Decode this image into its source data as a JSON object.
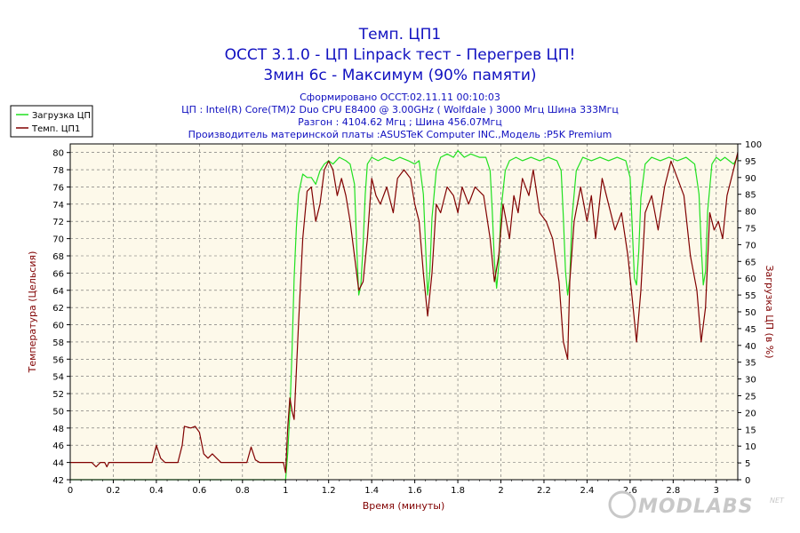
{
  "chart_data": {
    "type": "line",
    "titles": [
      "Темп. ЦП1",
      "OCCT 3.1.0 - ЦП Linpack тест - Перегрев ЦП!",
      "3мин 6с - Максимум (90% памяти)"
    ],
    "subtitles": [
      "Сформировано OCCT:02.11.11 00:10:03",
      "ЦП : Intel(R) Core(TM)2 Duo CPU E8400 @ 3.00GHz ( Wolfdale ) 3000 Мгц Шина 333Мгц",
      "Разгон : 4104.62 Мгц ; Шина 456.07Мгц",
      "Производитель материнской платы :ASUSTeK Computer INC.,Модель :P5K Premium"
    ],
    "xlabel": "Время (минуты)",
    "ylabel_left": "Температура (Цельсия)",
    "ylabel_right": "Загрузка ЦП (в %)",
    "xlim": [
      0,
      3.1
    ],
    "ylim_left": [
      42,
      81
    ],
    "ylim_right": [
      0,
      100
    ],
    "x_ticks": [
      "0",
      "0.2",
      "0.4",
      "0.6",
      "0.8",
      "1",
      "1.2",
      "1.4",
      "1.6",
      "1.8",
      "2",
      "2.2",
      "2.4",
      "2.6",
      "2.8",
      "3"
    ],
    "y_left_ticks": [
      "42",
      "44",
      "46",
      "48",
      "50",
      "52",
      "54",
      "56",
      "58",
      "60",
      "62",
      "64",
      "66",
      "68",
      "70",
      "72",
      "74",
      "76",
      "78",
      "80"
    ],
    "y_right_ticks": [
      "0",
      "5",
      "10",
      "15",
      "20",
      "25",
      "30",
      "35",
      "40",
      "45",
      "50",
      "55",
      "60",
      "65",
      "70",
      "75",
      "80",
      "85",
      "90",
      "95",
      "100"
    ],
    "grid": true,
    "legend_position": "top-left",
    "series": [
      {
        "name": "Загрузка ЦП",
        "axis": "right",
        "color": "#20e020",
        "points": [
          [
            0,
            0
          ],
          [
            1.0,
            0
          ],
          [
            1.01,
            8
          ],
          [
            1.02,
            20
          ],
          [
            1.03,
            38
          ],
          [
            1.04,
            60
          ],
          [
            1.05,
            75
          ],
          [
            1.06,
            85
          ],
          [
            1.08,
            91
          ],
          [
            1.1,
            90
          ],
          [
            1.12,
            90
          ],
          [
            1.14,
            88
          ],
          [
            1.16,
            92
          ],
          [
            1.18,
            94
          ],
          [
            1.2,
            95
          ],
          [
            1.22,
            94
          ],
          [
            1.25,
            96
          ],
          [
            1.28,
            95
          ],
          [
            1.3,
            94
          ],
          [
            1.32,
            88
          ],
          [
            1.33,
            70
          ],
          [
            1.34,
            55
          ],
          [
            1.35,
            58
          ],
          [
            1.36,
            70
          ],
          [
            1.37,
            85
          ],
          [
            1.38,
            94
          ],
          [
            1.4,
            96
          ],
          [
            1.43,
            95
          ],
          [
            1.46,
            96
          ],
          [
            1.5,
            95
          ],
          [
            1.53,
            96
          ],
          [
            1.57,
            95
          ],
          [
            1.6,
            94
          ],
          [
            1.62,
            95
          ],
          [
            1.64,
            85
          ],
          [
            1.65,
            70
          ],
          [
            1.66,
            55
          ],
          [
            1.67,
            62
          ],
          [
            1.68,
            78
          ],
          [
            1.7,
            92
          ],
          [
            1.72,
            96
          ],
          [
            1.75,
            97
          ],
          [
            1.78,
            96
          ],
          [
            1.8,
            98
          ],
          [
            1.83,
            96
          ],
          [
            1.86,
            97
          ],
          [
            1.9,
            96
          ],
          [
            1.93,
            96
          ],
          [
            1.95,
            92
          ],
          [
            1.96,
            80
          ],
          [
            1.97,
            65
          ],
          [
            1.98,
            57
          ],
          [
            1.99,
            64
          ],
          [
            2.0,
            80
          ],
          [
            2.02,
            92
          ],
          [
            2.04,
            95
          ],
          [
            2.07,
            96
          ],
          [
            2.1,
            95
          ],
          [
            2.14,
            96
          ],
          [
            2.18,
            95
          ],
          [
            2.22,
            96
          ],
          [
            2.26,
            95
          ],
          [
            2.28,
            92
          ],
          [
            2.29,
            78
          ],
          [
            2.3,
            62
          ],
          [
            2.31,
            55
          ],
          [
            2.32,
            60
          ],
          [
            2.33,
            78
          ],
          [
            2.35,
            92
          ],
          [
            2.38,
            96
          ],
          [
            2.42,
            95
          ],
          [
            2.46,
            96
          ],
          [
            2.5,
            95
          ],
          [
            2.54,
            96
          ],
          [
            2.58,
            95
          ],
          [
            2.6,
            90
          ],
          [
            2.61,
            75
          ],
          [
            2.62,
            60
          ],
          [
            2.63,
            58
          ],
          [
            2.64,
            68
          ],
          [
            2.65,
            84
          ],
          [
            2.67,
            94
          ],
          [
            2.7,
            96
          ],
          [
            2.74,
            95
          ],
          [
            2.78,
            96
          ],
          [
            2.82,
            95
          ],
          [
            2.86,
            96
          ],
          [
            2.9,
            94
          ],
          [
            2.92,
            85
          ],
          [
            2.93,
            70
          ],
          [
            2.94,
            58
          ],
          [
            2.95,
            62
          ],
          [
            2.96,
            80
          ],
          [
            2.98,
            94
          ],
          [
            3.0,
            96
          ],
          [
            3.02,
            95
          ],
          [
            3.04,
            96
          ],
          [
            3.06,
            95
          ],
          [
            3.08,
            94
          ],
          [
            3.1,
            96
          ]
        ]
      },
      {
        "name": "Темп. ЦП1",
        "axis": "left",
        "color": "#800000",
        "points": [
          [
            0,
            44
          ],
          [
            0.1,
            44
          ],
          [
            0.12,
            43.5
          ],
          [
            0.14,
            44
          ],
          [
            0.16,
            44
          ],
          [
            0.17,
            43.5
          ],
          [
            0.18,
            44
          ],
          [
            0.38,
            44
          ],
          [
            0.4,
            46
          ],
          [
            0.42,
            44.5
          ],
          [
            0.44,
            44
          ],
          [
            0.5,
            44
          ],
          [
            0.52,
            46
          ],
          [
            0.53,
            48.2
          ],
          [
            0.56,
            48
          ],
          [
            0.58,
            48.2
          ],
          [
            0.6,
            47.5
          ],
          [
            0.62,
            45
          ],
          [
            0.64,
            44.5
          ],
          [
            0.66,
            45
          ],
          [
            0.68,
            44.5
          ],
          [
            0.7,
            44
          ],
          [
            0.8,
            44
          ],
          [
            0.82,
            44
          ],
          [
            0.84,
            45.8
          ],
          [
            0.86,
            44.3
          ],
          [
            0.88,
            44
          ],
          [
            0.99,
            44
          ],
          [
            1.0,
            42.8
          ],
          [
            1.01,
            48
          ],
          [
            1.02,
            51.5
          ],
          [
            1.03,
            50
          ],
          [
            1.04,
            49
          ],
          [
            1.06,
            60
          ],
          [
            1.08,
            70
          ],
          [
            1.1,
            75.5
          ],
          [
            1.12,
            76
          ],
          [
            1.14,
            72
          ],
          [
            1.16,
            74
          ],
          [
            1.18,
            78
          ],
          [
            1.2,
            79
          ],
          [
            1.22,
            78
          ],
          [
            1.24,
            75
          ],
          [
            1.26,
            77
          ],
          [
            1.28,
            75
          ],
          [
            1.3,
            72
          ],
          [
            1.32,
            68
          ],
          [
            1.34,
            64
          ],
          [
            1.36,
            65
          ],
          [
            1.38,
            70
          ],
          [
            1.4,
            77
          ],
          [
            1.42,
            75
          ],
          [
            1.44,
            74
          ],
          [
            1.47,
            76
          ],
          [
            1.5,
            73
          ],
          [
            1.52,
            77
          ],
          [
            1.55,
            78
          ],
          [
            1.58,
            77
          ],
          [
            1.6,
            74
          ],
          [
            1.62,
            72
          ],
          [
            1.64,
            66
          ],
          [
            1.66,
            61
          ],
          [
            1.68,
            66
          ],
          [
            1.7,
            74
          ],
          [
            1.72,
            73
          ],
          [
            1.75,
            76
          ],
          [
            1.78,
            75
          ],
          [
            1.8,
            73
          ],
          [
            1.82,
            76
          ],
          [
            1.85,
            74
          ],
          [
            1.88,
            76
          ],
          [
            1.92,
            75
          ],
          [
            1.95,
            70
          ],
          [
            1.97,
            65
          ],
          [
            1.99,
            68
          ],
          [
            2.01,
            74
          ],
          [
            2.04,
            70
          ],
          [
            2.06,
            75
          ],
          [
            2.08,
            73
          ],
          [
            2.1,
            77
          ],
          [
            2.13,
            75
          ],
          [
            2.15,
            78
          ],
          [
            2.18,
            73
          ],
          [
            2.21,
            72
          ],
          [
            2.24,
            70
          ],
          [
            2.27,
            65
          ],
          [
            2.29,
            58
          ],
          [
            2.31,
            56
          ],
          [
            2.32,
            65
          ],
          [
            2.34,
            72
          ],
          [
            2.37,
            76
          ],
          [
            2.4,
            72
          ],
          [
            2.42,
            75
          ],
          [
            2.44,
            70
          ],
          [
            2.47,
            77
          ],
          [
            2.5,
            74
          ],
          [
            2.53,
            71
          ],
          [
            2.56,
            73
          ],
          [
            2.59,
            68
          ],
          [
            2.61,
            63
          ],
          [
            2.63,
            58
          ],
          [
            2.65,
            64
          ],
          [
            2.67,
            73
          ],
          [
            2.7,
            75
          ],
          [
            2.73,
            71
          ],
          [
            2.76,
            76
          ],
          [
            2.79,
            79
          ],
          [
            2.82,
            77
          ],
          [
            2.85,
            75
          ],
          [
            2.88,
            68
          ],
          [
            2.91,
            64
          ],
          [
            2.93,
            58
          ],
          [
            2.95,
            62
          ],
          [
            2.97,
            73
          ],
          [
            2.99,
            71
          ],
          [
            3.01,
            72
          ],
          [
            3.03,
            70
          ],
          [
            3.05,
            75
          ],
          [
            3.08,
            78
          ],
          [
            3.1,
            80
          ]
        ]
      }
    ]
  },
  "watermark": {
    "text": "MODLABS",
    "sup": "NET"
  }
}
